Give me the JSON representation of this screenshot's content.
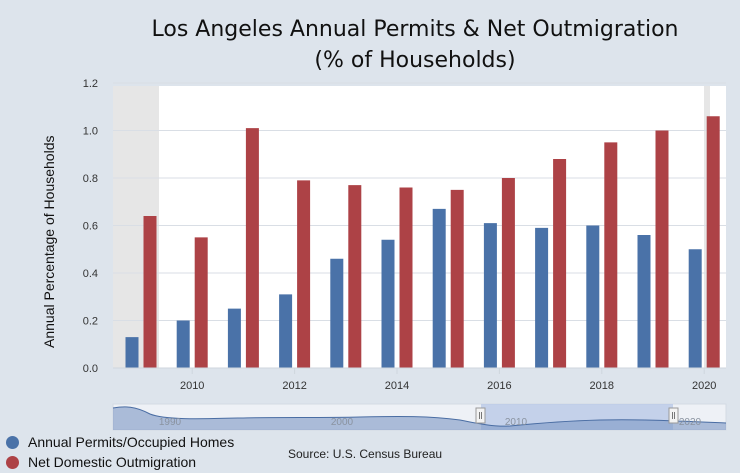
{
  "title_line1": "Los Angeles Annual Permits & Net Outmigration",
  "title_line2": "(% of Households)",
  "source": "Source: U.S. Census Bureau",
  "colors": {
    "series1": "#4a72a8",
    "series2": "#ad4246"
  },
  "navigator": {
    "tick_labels": [
      "1990",
      "2000",
      "2010",
      "2020"
    ]
  },
  "chart_data": {
    "type": "bar",
    "title": "Los Angeles Annual Permits & Net Outmigration (% of Households)",
    "xlabel": "",
    "ylabel": "Annual Percentage of Households",
    "ylim": [
      0,
      1.2
    ],
    "yticks": [
      "0.0",
      "0.2",
      "0.4",
      "0.6",
      "0.8",
      "1.0",
      "1.2"
    ],
    "x_tick_labels": [
      "2010",
      "2012",
      "2014",
      "2016",
      "2018",
      "2020"
    ],
    "categories": [
      "2009",
      "2010",
      "2011",
      "2012",
      "2013",
      "2014",
      "2015",
      "2016",
      "2017",
      "2018",
      "2019",
      "2020"
    ],
    "series": [
      {
        "name": "Annual Permits/Occupied Homes",
        "values": [
          0.13,
          0.2,
          0.25,
          0.31,
          0.46,
          0.54,
          0.67,
          0.61,
          0.59,
          0.6,
          0.56,
          0.5
        ]
      },
      {
        "name": "Net Domestic Outmigration",
        "values": [
          0.64,
          0.55,
          1.01,
          0.79,
          0.77,
          0.76,
          0.75,
          0.8,
          0.88,
          0.95,
          1.0,
          1.06
        ]
      }
    ],
    "grid": true,
    "legend": "bottom-left"
  }
}
